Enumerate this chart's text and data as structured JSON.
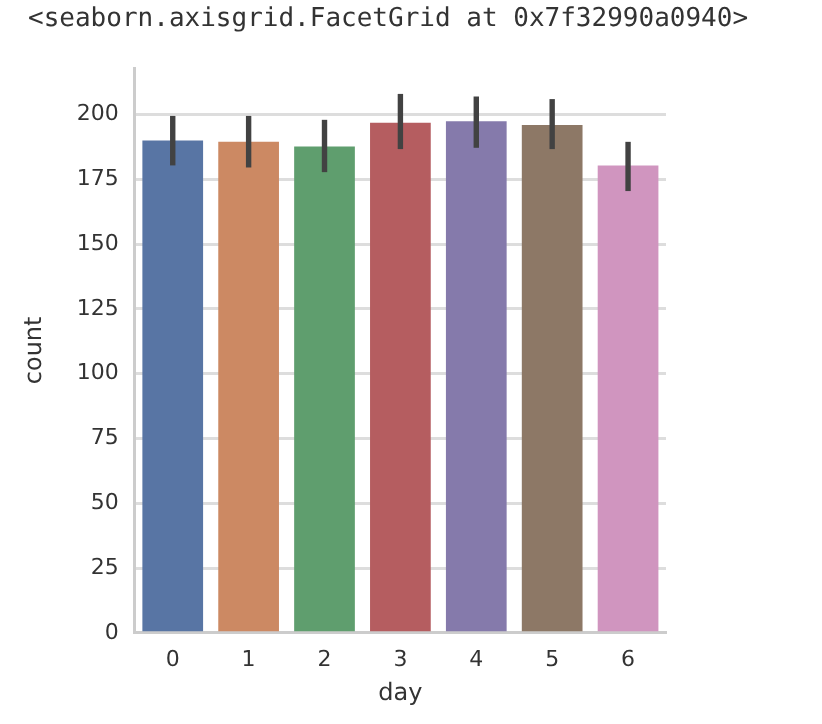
{
  "chart_data": {
    "type": "bar",
    "annotations": [
      "<seaborn.axisgrid.FacetGrid at 0x7f32990a0940>"
    ],
    "xlabel": "day",
    "ylabel": "count",
    "categories": [
      "0",
      "1",
      "2",
      "3",
      "4",
      "5",
      "6"
    ],
    "values": [
      190,
      189.5,
      187.7,
      196.9,
      197.4,
      196,
      180.4
    ],
    "colors": [
      "#5875a4",
      "#cc8963",
      "#5f9e6e",
      "#b55d60",
      "#857aab",
      "#8d7866",
      "#d095bf"
    ],
    "errors": [
      [
        180.4,
        199.5
      ],
      [
        179.6,
        199.5
      ],
      [
        177.8,
        198
      ],
      [
        186.7,
        208
      ],
      [
        187.2,
        207
      ],
      [
        186.7,
        206
      ],
      [
        170.5,
        189.5
      ]
    ],
    "ylim": [
      0,
      218
    ],
    "yticks": [
      0,
      25,
      50,
      75,
      100,
      125,
      150,
      175,
      200
    ],
    "grid": "y",
    "legend": false
  }
}
